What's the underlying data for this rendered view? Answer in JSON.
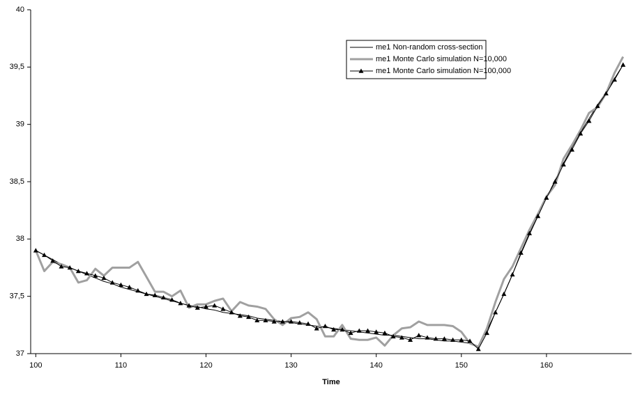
{
  "chart_data": {
    "type": "line",
    "x_label": "Time",
    "x": [
      100,
      101,
      102,
      103,
      104,
      105,
      106,
      107,
      108,
      109,
      110,
      111,
      112,
      113,
      114,
      115,
      116,
      117,
      118,
      119,
      120,
      121,
      122,
      123,
      124,
      125,
      126,
      127,
      128,
      129,
      130,
      131,
      132,
      133,
      134,
      135,
      136,
      137,
      138,
      139,
      140,
      141,
      142,
      143,
      144,
      145,
      146,
      147,
      148,
      149,
      150,
      151,
      152,
      153,
      154,
      155,
      156,
      157,
      158,
      159,
      160,
      161,
      162,
      163,
      164,
      165,
      166,
      167,
      168,
      169
    ],
    "series": [
      {
        "name": "me1 Non-random cross-section",
        "color": "#000000",
        "width": 1,
        "marker": null,
        "values": [
          37.9,
          37.86,
          37.82,
          37.78,
          37.75,
          37.72,
          37.69,
          37.66,
          37.63,
          37.61,
          37.58,
          37.56,
          37.54,
          37.52,
          37.5,
          37.48,
          37.46,
          37.44,
          37.42,
          37.41,
          37.39,
          37.38,
          37.36,
          37.35,
          37.34,
          37.33,
          37.31,
          37.3,
          37.29,
          37.28,
          37.27,
          37.26,
          37.25,
          37.24,
          37.23,
          37.22,
          37.21,
          37.2,
          37.19,
          37.18,
          37.17,
          37.16,
          37.16,
          37.15,
          37.14,
          37.13,
          37.13,
          37.12,
          37.11,
          37.11,
          37.1,
          37.09,
          37.06,
          37.2,
          37.36,
          37.52,
          37.69,
          37.87,
          38.04,
          38.2,
          38.36,
          38.51,
          38.66,
          38.8,
          38.93,
          39.05,
          39.17,
          39.28,
          39.4,
          39.52
        ]
      },
      {
        "name": "me1 Monte Carlo simulation N=10,000",
        "color": "#a0a0a0",
        "width": 3,
        "marker": null,
        "values": [
          37.9,
          37.72,
          37.8,
          37.78,
          37.75,
          37.62,
          37.64,
          37.74,
          37.68,
          37.75,
          37.75,
          37.75,
          37.8,
          37.67,
          37.54,
          37.54,
          37.5,
          37.55,
          37.4,
          37.43,
          37.43,
          37.46,
          37.48,
          37.37,
          37.45,
          37.42,
          37.41,
          37.39,
          37.3,
          37.25,
          37.31,
          37.32,
          37.36,
          37.3,
          37.15,
          37.15,
          37.25,
          37.13,
          37.12,
          37.12,
          37.14,
          37.07,
          37.16,
          37.22,
          37.23,
          37.28,
          37.25,
          37.25,
          37.25,
          37.24,
          37.19,
          37.09,
          37.06,
          37.22,
          37.45,
          37.65,
          37.76,
          37.92,
          38.08,
          38.22,
          38.37,
          38.47,
          38.7,
          38.82,
          38.95,
          39.1,
          39.15,
          39.27,
          39.45,
          39.59
        ]
      },
      {
        "name": "me1 Monte Carlo simulation N=100,000",
        "color": "#000000",
        "width": 1,
        "marker": "triangle",
        "values": [
          37.9,
          37.86,
          37.81,
          37.76,
          37.75,
          37.72,
          37.7,
          37.68,
          37.66,
          37.62,
          37.6,
          37.58,
          37.55,
          37.52,
          37.51,
          37.49,
          37.47,
          37.44,
          37.42,
          37.4,
          37.41,
          37.42,
          37.39,
          37.36,
          37.33,
          37.32,
          37.29,
          37.29,
          37.28,
          37.28,
          37.28,
          37.27,
          37.26,
          37.22,
          37.24,
          37.21,
          37.21,
          37.18,
          37.2,
          37.2,
          37.19,
          37.18,
          37.15,
          37.14,
          37.12,
          37.16,
          37.14,
          37.13,
          37.13,
          37.12,
          37.12,
          37.11,
          37.04,
          37.18,
          37.36,
          37.52,
          37.69,
          37.88,
          38.05,
          38.2,
          38.36,
          38.5,
          38.65,
          38.78,
          38.92,
          39.03,
          39.16,
          39.27,
          39.39,
          39.52
        ]
      }
    ],
    "xlim": [
      99.4,
      170
    ],
    "xticks": [
      100,
      110,
      120,
      130,
      140,
      150,
      160
    ],
    "ylim": [
      37,
      40
    ],
    "yticks": [
      37,
      {
        "value": 37.5,
        "label": "37,5"
      },
      38,
      {
        "value": 38.5,
        "label": "38,5"
      },
      39,
      {
        "value": 39.5,
        "label": "39,5"
      },
      40
    ],
    "grid": false,
    "legend": "top-right"
  }
}
